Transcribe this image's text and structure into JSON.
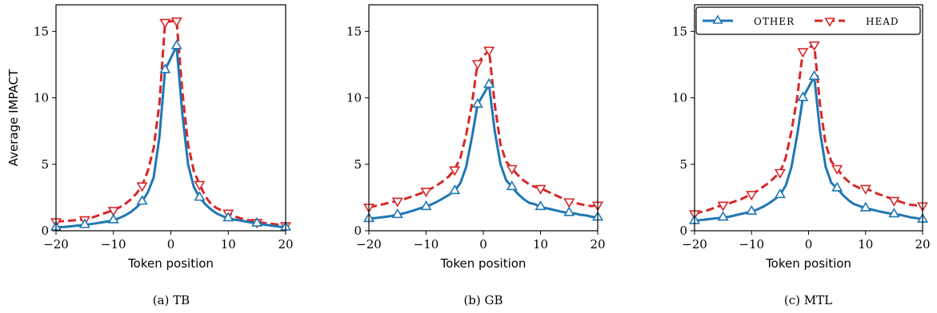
{
  "chart_data": [
    {
      "type": "line",
      "caption": "(a) TB",
      "xlabel": "Token position",
      "ylabel": "Average IMPACT",
      "xlim": [
        -20,
        20
      ],
      "ylim": [
        0,
        17
      ],
      "xticks": [
        -20,
        -10,
        0,
        10,
        20
      ],
      "xtick_labels": [
        "−20",
        "−10",
        "0",
        "10",
        "20"
      ],
      "yticks": [
        0,
        5,
        10,
        15
      ],
      "ytick_labels": [
        "0",
        "5",
        "10",
        "15"
      ],
      "grid": false,
      "legend": null,
      "series": [
        {
          "name": "OTHER",
          "color": "#1f77b4",
          "marker": "triangle-up",
          "linestyle": "solid",
          "x": [
            -20,
            -19,
            -18,
            -17,
            -16,
            -15,
            -14,
            -13,
            -12,
            -11,
            -10,
            -9,
            -8,
            -7,
            -6,
            -5,
            -4,
            -3,
            -2,
            -1,
            1,
            2,
            3,
            4,
            5,
            6,
            7,
            8,
            9,
            10,
            11,
            12,
            13,
            14,
            15,
            16,
            17,
            18,
            19,
            20
          ],
          "y": [
            0.25,
            0.28,
            0.31,
            0.35,
            0.4,
            0.45,
            0.5,
            0.56,
            0.63,
            0.7,
            0.8,
            0.95,
            1.15,
            1.4,
            1.75,
            2.2,
            2.9,
            4.0,
            7.0,
            12.1,
            13.9,
            8.8,
            5.0,
            3.3,
            2.5,
            2.0,
            1.6,
            1.3,
            1.1,
            0.95,
            0.85,
            0.78,
            0.7,
            0.62,
            0.55,
            0.48,
            0.42,
            0.36,
            0.3,
            0.25
          ],
          "marker_x": [
            -20,
            -15,
            -10,
            -5,
            -1,
            1,
            5,
            10,
            15,
            20
          ]
        },
        {
          "name": "HEAD",
          "color": "#d62728",
          "marker": "triangle-down",
          "linestyle": "dashed",
          "x": [
            -20,
            -19,
            -18,
            -17,
            -16,
            -15,
            -14,
            -13,
            -12,
            -11,
            -10,
            -9,
            -8,
            -7,
            -6,
            -5,
            -4,
            -3,
            -2,
            -1,
            1,
            2,
            3,
            4,
            5,
            6,
            7,
            8,
            9,
            10,
            11,
            12,
            13,
            14,
            15,
            16,
            17,
            18,
            19,
            20
          ],
          "y": [
            0.7,
            0.72,
            0.75,
            0.78,
            0.82,
            0.85,
            0.95,
            1.1,
            1.25,
            1.4,
            1.55,
            1.75,
            2.0,
            2.35,
            2.8,
            3.4,
            4.5,
            6.2,
            9.5,
            15.7,
            15.8,
            10.5,
            6.5,
            4.5,
            3.5,
            2.6,
            2.0,
            1.7,
            1.5,
            1.35,
            1.1,
            0.95,
            0.85,
            0.75,
            0.65,
            0.6,
            0.55,
            0.5,
            0.45,
            0.4
          ],
          "marker_x": [
            -20,
            -15,
            -10,
            -5,
            -1,
            1,
            5,
            10,
            15,
            20
          ]
        }
      ]
    },
    {
      "type": "line",
      "caption": "(b) GB",
      "xlabel": "Token position",
      "ylabel": "",
      "xlim": [
        -20,
        20
      ],
      "ylim": [
        0,
        17
      ],
      "xticks": [
        -20,
        -10,
        0,
        10,
        20
      ],
      "xtick_labels": [
        "−20",
        "−10",
        "0",
        "10",
        "20"
      ],
      "yticks": [
        0,
        5,
        10,
        15
      ],
      "ytick_labels": [
        "0",
        "5",
        "10",
        "15"
      ],
      "grid": false,
      "legend": null,
      "series": [
        {
          "name": "OTHER",
          "color": "#1f77b4",
          "marker": "triangle-up",
          "linestyle": "solid",
          "x": [
            -20,
            -19,
            -18,
            -17,
            -16,
            -15,
            -14,
            -13,
            -12,
            -11,
            -10,
            -9,
            -8,
            -7,
            -6,
            -5,
            -4,
            -3,
            -2,
            -1,
            1,
            2,
            3,
            4,
            5,
            6,
            7,
            8,
            9,
            10,
            11,
            12,
            13,
            14,
            15,
            16,
            17,
            18,
            19,
            20
          ],
          "y": [
            0.9,
            0.95,
            1.0,
            1.05,
            1.12,
            1.2,
            1.3,
            1.42,
            1.55,
            1.7,
            1.8,
            2.0,
            2.2,
            2.45,
            2.7,
            3.0,
            3.6,
            4.8,
            7.0,
            9.5,
            11.0,
            7.5,
            5.0,
            3.8,
            3.3,
            2.8,
            2.4,
            2.1,
            2.0,
            1.8,
            1.7,
            1.6,
            1.5,
            1.4,
            1.35,
            1.3,
            1.2,
            1.15,
            1.05,
            1.0
          ],
          "marker_x": [
            -20,
            -15,
            -10,
            -5,
            -1,
            1,
            5,
            10,
            15,
            20
          ]
        },
        {
          "name": "HEAD",
          "color": "#d62728",
          "marker": "triangle-down",
          "linestyle": "dashed",
          "x": [
            -20,
            -19,
            -18,
            -17,
            -16,
            -15,
            -14,
            -13,
            -12,
            -11,
            -10,
            -9,
            -8,
            -7,
            -6,
            -5,
            -4,
            -3,
            -2,
            -1,
            1,
            2,
            3,
            4,
            5,
            6,
            7,
            8,
            9,
            10,
            11,
            12,
            13,
            14,
            15,
            16,
            17,
            18,
            19,
            20
          ],
          "y": [
            1.8,
            1.85,
            1.95,
            2.05,
            2.15,
            2.25,
            2.35,
            2.5,
            2.65,
            2.8,
            3.0,
            3.2,
            3.45,
            3.75,
            4.1,
            4.6,
            5.5,
            7.2,
            9.5,
            12.6,
            13.6,
            9.5,
            6.5,
            5.2,
            4.7,
            4.2,
            3.8,
            3.5,
            3.3,
            3.2,
            3.0,
            2.8,
            2.6,
            2.4,
            2.2,
            2.1,
            2.0,
            1.9,
            1.85,
            1.95
          ],
          "marker_x": [
            -20,
            -15,
            -10,
            -5,
            -1,
            1,
            5,
            10,
            15,
            20
          ]
        }
      ]
    },
    {
      "type": "line",
      "caption": "(c) MTL",
      "xlabel": "Token position",
      "ylabel": "",
      "xlim": [
        -20,
        20
      ],
      "ylim": [
        0,
        17
      ],
      "xticks": [
        -20,
        -10,
        0,
        10,
        20
      ],
      "xtick_labels": [
        "−20",
        "−10",
        "0",
        "10",
        "20"
      ],
      "yticks": [
        0,
        5,
        10,
        15
      ],
      "ytick_labels": [
        "0",
        "5",
        "10",
        "15"
      ],
      "grid": false,
      "legend": "top-right",
      "series": [
        {
          "name": "OTHER",
          "color": "#1f77b4",
          "marker": "triangle-up",
          "linestyle": "solid",
          "x": [
            -20,
            -19,
            -18,
            -17,
            -16,
            -15,
            -14,
            -13,
            -12,
            -11,
            -10,
            -9,
            -8,
            -7,
            -6,
            -5,
            -4,
            -3,
            -2,
            -1,
            1,
            2,
            3,
            4,
            5,
            6,
            7,
            8,
            9,
            10,
            11,
            12,
            13,
            14,
            15,
            16,
            17,
            18,
            19,
            20
          ],
          "y": [
            0.75,
            0.8,
            0.85,
            0.9,
            0.95,
            1.0,
            1.05,
            1.15,
            1.25,
            1.35,
            1.45,
            1.6,
            1.8,
            2.05,
            2.35,
            2.7,
            3.4,
            4.8,
            7.2,
            10.0,
            11.6,
            7.5,
            4.8,
            3.6,
            3.2,
            2.7,
            2.3,
            2.0,
            1.85,
            1.7,
            1.6,
            1.5,
            1.4,
            1.32,
            1.25,
            1.2,
            1.1,
            1.0,
            0.95,
            0.85
          ],
          "marker_x": [
            -20,
            -15,
            -10,
            -5,
            -1,
            1,
            5,
            10,
            15,
            20
          ]
        },
        {
          "name": "HEAD",
          "color": "#d62728",
          "marker": "triangle-down",
          "linestyle": "dashed",
          "x": [
            -20,
            -19,
            -18,
            -17,
            -16,
            -15,
            -14,
            -13,
            -12,
            -11,
            -10,
            -9,
            -8,
            -7,
            -6,
            -5,
            -4,
            -3,
            -2,
            -1,
            1,
            2,
            3,
            4,
            5,
            6,
            7,
            8,
            9,
            10,
            11,
            12,
            13,
            14,
            15,
            16,
            17,
            18,
            19,
            20
          ],
          "y": [
            1.3,
            1.4,
            1.5,
            1.65,
            1.8,
            1.95,
            2.05,
            2.2,
            2.35,
            2.55,
            2.75,
            3.0,
            3.3,
            3.6,
            4.0,
            4.4,
            5.5,
            7.5,
            10.0,
            13.5,
            14.0,
            9.5,
            6.5,
            5.2,
            4.7,
            4.1,
            3.7,
            3.4,
            3.2,
            3.2,
            3.0,
            2.8,
            2.65,
            2.5,
            2.3,
            2.2,
            2.05,
            1.95,
            1.9,
            1.9
          ],
          "marker_x": [
            -20,
            -15,
            -10,
            -5,
            -1,
            1,
            5,
            10,
            15,
            20
          ]
        }
      ]
    }
  ]
}
